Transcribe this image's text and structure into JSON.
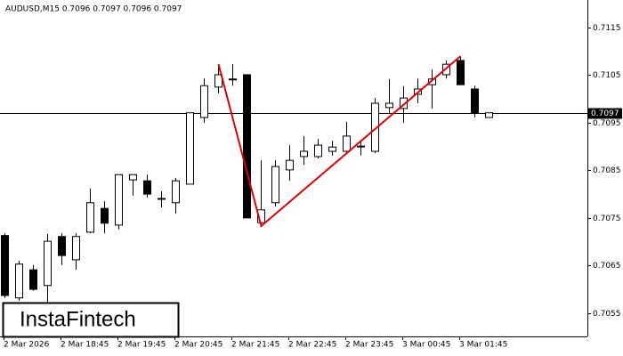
{
  "chart_data": {
    "type": "candlestick",
    "header": "AUDUSD,M15  0.7096 0.7097 0.7096 0.7097",
    "logo": "InstaFintech",
    "categories": [
      "2 Mar 2026",
      null,
      null,
      null,
      "2 Mar 18:45",
      null,
      null,
      null,
      "2 Mar 19:45",
      null,
      null,
      null,
      "2 Mar 20:45",
      null,
      null,
      null,
      "2 Mar 21:45",
      null,
      null,
      null,
      "2 Mar 22:45",
      null,
      null,
      null,
      "2 Mar 23:45",
      null,
      null,
      null,
      "3 Mar 00:45",
      null,
      null,
      null,
      "3 Mar 01:45",
      null,
      null
    ],
    "open": [
      0.70713,
      0.70582,
      0.70641,
      0.70608,
      0.70711,
      0.70662,
      0.7072,
      0.7077,
      0.70735,
      0.7083,
      0.70828,
      0.70791,
      0.70782,
      0.70821,
      0.70961,
      0.71025,
      0.71042,
      0.71051,
      0.7074,
      0.70782,
      0.70851,
      0.70879,
      0.70879,
      0.7089,
      0.7089,
      0.70901,
      0.7089,
      0.70982,
      0.7098,
      0.7101,
      0.7103,
      0.71051,
      0.71081,
      0.71021,
      0.70961
    ],
    "high": [
      0.70718,
      0.7066,
      0.70651,
      0.70716,
      0.70718,
      0.70718,
      0.70812,
      0.70785,
      0.70841,
      0.70841,
      0.70841,
      0.70806,
      0.70834,
      0.70971,
      0.71043,
      0.71073,
      0.71073,
      0.71051,
      0.70871,
      0.70871,
      0.70903,
      0.70922,
      0.70916,
      0.70912,
      0.70952,
      0.70914,
      0.71002,
      0.71042,
      0.71027,
      0.71043,
      0.71062,
      0.71081,
      0.7109,
      0.71028,
      0.70971
    ],
    "low": [
      0.70582,
      0.70576,
      0.70597,
      0.70572,
      0.70651,
      0.70641,
      0.70718,
      0.70718,
      0.70726,
      0.70797,
      0.70793,
      0.70772,
      0.70759,
      0.70821,
      0.7095,
      0.71012,
      0.71028,
      0.7075,
      0.70733,
      0.70774,
      0.70828,
      0.70862,
      0.70875,
      0.70881,
      0.70886,
      0.70881,
      0.70886,
      0.70969,
      0.7095,
      0.70991,
      0.7098,
      0.71043,
      0.7103,
      0.70961,
      0.70961
    ],
    "close": [
      0.70587,
      0.70653,
      0.706,
      0.70701,
      0.70671,
      0.70711,
      0.70782,
      0.70739,
      0.70841,
      0.70841,
      0.708,
      0.70791,
      0.70828,
      0.70971,
      0.71028,
      0.71051,
      0.71042,
      0.7075,
      0.70767,
      0.70858,
      0.70871,
      0.7089,
      0.70903,
      0.70899,
      0.70922,
      0.70901,
      0.70991,
      0.70991,
      0.71002,
      0.71021,
      0.71042,
      0.71073,
      0.7103,
      0.70971,
      0.70971
    ],
    "up_color": "#ffffff",
    "down_color": "#000000",
    "pattern": {
      "color": "#e00000",
      "x": [
        15,
        18,
        32
      ],
      "y": [
        0.71073,
        0.70733,
        0.7109
      ]
    },
    "last_price": 0.7097,
    "ylim": [
      0.70501,
      0.71208
    ],
    "yticks": [
      0.7115,
      0.7105,
      0.7095,
      0.7085,
      0.7075,
      0.7065,
      0.7055
    ]
  }
}
